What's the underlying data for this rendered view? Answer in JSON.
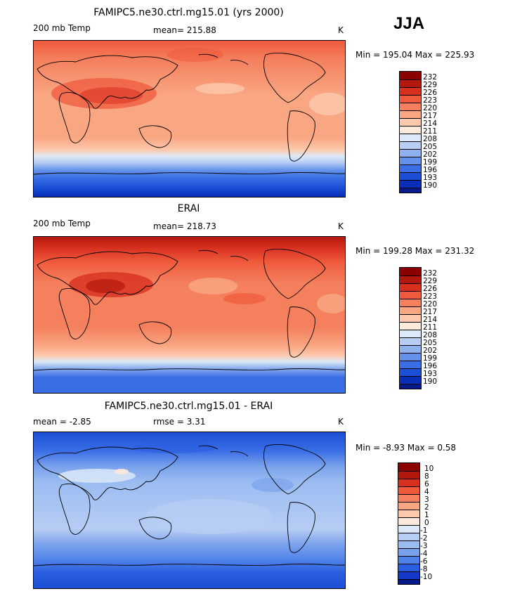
{
  "season": "JJA",
  "panels": [
    {
      "title": "FAMIPC5.ne30.ctrl.mg15.01 (yrs 2000)",
      "left": "200 mb Temp",
      "center": "mean= 215.88",
      "right": "K",
      "minmax": "Min = 195.04 Max = 225.93",
      "ticks": [
        "232",
        "229",
        "226",
        "223",
        "220",
        "217",
        "214",
        "211",
        "208",
        "205",
        "202",
        "199",
        "196",
        "193",
        "190"
      ],
      "bands": [
        "#8b0000",
        "#b2180e",
        "#d7301f",
        "#ef5a3c",
        "#f4805d",
        "#f9a683",
        "#fcc9ad",
        "#feeadb",
        "#dbe9f8",
        "#b7cdf4",
        "#8fb2ef",
        "#6492ea",
        "#3a6ee5",
        "#1a4fd6",
        "#0a2eb8",
        "#061a8c"
      ]
    },
    {
      "title": "ERAI",
      "left": "200 mb Temp",
      "center": "mean= 218.73",
      "right": "K",
      "minmax": "Min = 199.28 Max = 231.32",
      "ticks": [
        "232",
        "229",
        "226",
        "223",
        "220",
        "217",
        "214",
        "211",
        "208",
        "205",
        "202",
        "199",
        "196",
        "193",
        "190"
      ],
      "bands": [
        "#8b0000",
        "#b2180e",
        "#d7301f",
        "#ef5a3c",
        "#f4805d",
        "#f9a683",
        "#fcc9ad",
        "#feeadb",
        "#dbe9f8",
        "#b7cdf4",
        "#8fb2ef",
        "#6492ea",
        "#3a6ee5",
        "#1a4fd6",
        "#0a2eb8",
        "#061a8c"
      ]
    },
    {
      "title": "FAMIPC5.ne30.ctrl.mg15.01 - ERAI",
      "left": "mean =   -2.85",
      "center": "rmse =    3.31",
      "right": "K",
      "minmax": "Min =  -8.93 Max =   0.58",
      "ticks": [
        "10",
        "8",
        "6",
        "4",
        "3",
        "2",
        "1",
        "0",
        "-1",
        "-2",
        "-3",
        "-4",
        "-6",
        "-8",
        "-10"
      ],
      "bands": [
        "#8b0000",
        "#b2180e",
        "#d7301f",
        "#ef5a3c",
        "#f4805d",
        "#f9a683",
        "#fcc9ad",
        "#fde9dc",
        "#dbe9f8",
        "#b7cdf4",
        "#9bbcf1",
        "#7aa2ec",
        "#4f82e8",
        "#2a5ee0",
        "#1438c8",
        "#061a8c"
      ]
    }
  ]
}
